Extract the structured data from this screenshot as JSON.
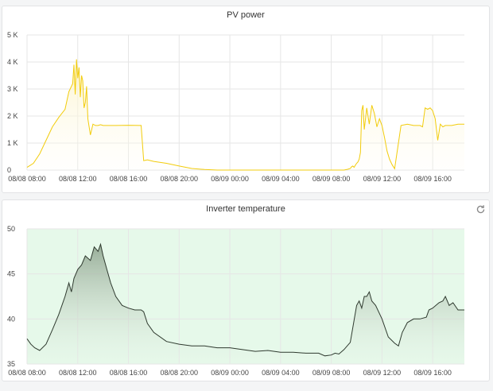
{
  "panels": {
    "pv": {
      "title": "PV power"
    },
    "temp": {
      "title": "Inverter temperature",
      "refresh_icon": "refresh-icon"
    }
  },
  "colors": {
    "pv_line": "#f2cc0c",
    "pv_fill": "#fcf3c8",
    "temp_line": "#2f3a2f",
    "temp_fill_top": "#8aa08a",
    "temp_fill_bottom": "#e8f3e8",
    "temp_bg": "#e6f9ea",
    "grid": "#e6e6e6"
  },
  "chart_data": [
    {
      "type": "area",
      "title": "PV power",
      "xlabel": "",
      "ylabel": "",
      "x_ticks": [
        "08/08 08:00",
        "08/08 12:00",
        "08/08 16:00",
        "08/08 20:00",
        "08/09 00:00",
        "08/09 04:00",
        "08/09 08:00",
        "08/09 12:00",
        "08/09 16:00"
      ],
      "y_ticks": [
        "0",
        "1 K",
        "2 K",
        "3 K",
        "4 K",
        "5 K"
      ],
      "ylim": [
        0,
        5000
      ],
      "xlim_hours": [
        0,
        34.5
      ],
      "grid": true,
      "series": [
        {
          "x": [
            0,
            0.5,
            1,
            1.5,
            2,
            2.5,
            3,
            3.3,
            3.6,
            3.7,
            3.8,
            3.9,
            4.0,
            4.1,
            4.2,
            4.3,
            4.4,
            4.5,
            4.6,
            4.7,
            4.8,
            5.0,
            5.2,
            5.4,
            5.6,
            5.8,
            6,
            7,
            8,
            9,
            9.2,
            9.5,
            10,
            11,
            12,
            13,
            14,
            15,
            16,
            18,
            20,
            22,
            23,
            23.5,
            24,
            24.5,
            25,
            25.3,
            25.5,
            25.6,
            25.7,
            25.8,
            25.9,
            26.0,
            26.1,
            26.2,
            26.3,
            26.4,
            26.5,
            26.6,
            26.8,
            27,
            27.2,
            27.4,
            27.6,
            27.8,
            28,
            28.2,
            28.4,
            28.6,
            28.8,
            29,
            29.5,
            30,
            30.5,
            31,
            31.2,
            31.4,
            31.6,
            31.8,
            32,
            32.2,
            32.4,
            32.6,
            32.8,
            33,
            33.5,
            34,
            34.5
          ],
          "y": [
            100,
            250,
            600,
            1100,
            1600,
            1950,
            2250,
            2900,
            3200,
            3900,
            2800,
            4100,
            3400,
            3800,
            2700,
            3500,
            3300,
            2300,
            2500,
            3100,
            1900,
            1300,
            1700,
            1650,
            1650,
            1680,
            1650,
            1650,
            1660,
            1650,
            350,
            380,
            320,
            250,
            150,
            60,
            20,
            0,
            0,
            0,
            0,
            0,
            0,
            0,
            0,
            0,
            0,
            30,
            60,
            120,
            150,
            100,
            180,
            250,
            300,
            400,
            650,
            2200,
            2400,
            1500,
            2300,
            1700,
            2400,
            2100,
            1600,
            1900,
            1650,
            1200,
            700,
            400,
            200,
            50,
            1650,
            1700,
            1650,
            1650,
            1600,
            2300,
            2250,
            2300,
            2200,
            1900,
            1100,
            1700,
            1600,
            1650,
            1650,
            1700,
            1700
          ]
        }
      ]
    },
    {
      "type": "area",
      "title": "Inverter temperature",
      "xlabel": "",
      "ylabel": "",
      "x_ticks": [
        "08/08 08:00",
        "08/08 12:00",
        "08/08 16:00",
        "08/08 20:00",
        "08/09 00:00",
        "08/09 04:00",
        "08/09 08:00",
        "08/09 12:00",
        "08/09 16:00"
      ],
      "y_ticks": [
        "35",
        "40",
        "45",
        "50"
      ],
      "ylim": [
        35,
        50
      ],
      "xlim_hours": [
        0,
        34.5
      ],
      "grid": true,
      "series": [
        {
          "x": [
            0,
            0.3,
            0.6,
            1,
            1.5,
            2,
            2.5,
            3,
            3.3,
            3.5,
            3.7,
            4,
            4.3,
            4.6,
            5,
            5.3,
            5.6,
            5.8,
            6,
            6.3,
            6.6,
            7,
            7.5,
            8,
            8.5,
            9,
            9.2,
            9.5,
            10,
            11,
            12,
            13,
            14,
            15,
            16,
            17,
            18,
            19,
            20,
            21,
            22,
            23,
            23.5,
            24,
            24.3,
            24.6,
            25,
            25.5,
            26,
            26.2,
            26.4,
            26.6,
            26.8,
            27,
            27.2,
            27.5,
            28,
            28.5,
            29,
            29.3,
            29.6,
            30,
            30.5,
            31,
            31.5,
            31.7,
            32,
            32.5,
            32.8,
            33,
            33.3,
            33.6,
            34,
            34.5
          ],
          "y": [
            37.8,
            37.2,
            36.8,
            36.5,
            37.2,
            38.8,
            40.5,
            42.5,
            44,
            43,
            44.5,
            45.5,
            46,
            47,
            46.5,
            48,
            47.5,
            48.3,
            47,
            45.5,
            44,
            42.5,
            41.5,
            41.2,
            41,
            41,
            40.8,
            39.5,
            38.5,
            37.5,
            37.2,
            37,
            37,
            36.8,
            36.8,
            36.6,
            36.4,
            36.5,
            36.3,
            36.3,
            36.2,
            36.2,
            35.9,
            36,
            36.2,
            36.1,
            36.6,
            37.4,
            41.5,
            42,
            41.2,
            42.5,
            42.5,
            43,
            42,
            41.5,
            40,
            38,
            37.3,
            37,
            38.5,
            39.6,
            40,
            40,
            40.2,
            41,
            41.2,
            41.8,
            42,
            42.5,
            41.5,
            41.8,
            41,
            41
          ]
        }
      ]
    }
  ]
}
